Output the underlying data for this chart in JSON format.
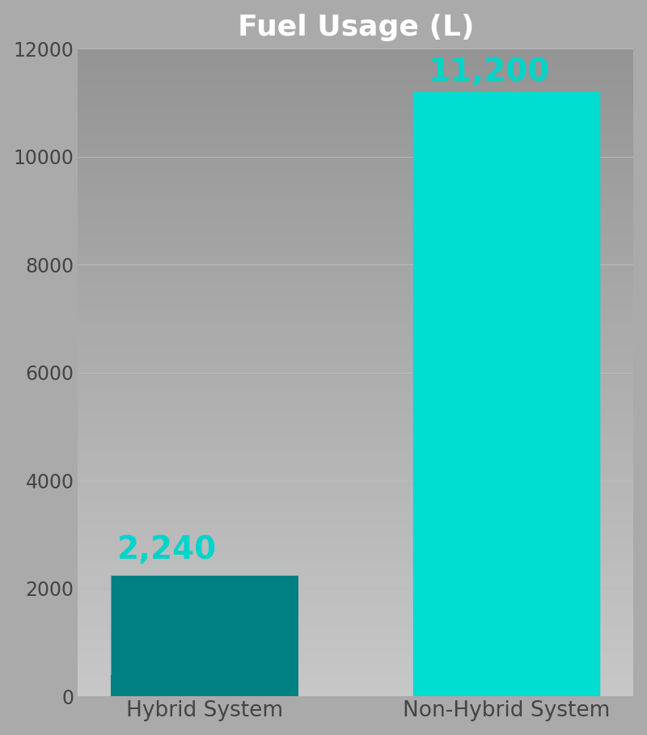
{
  "title": "Fuel Usage (L)",
  "categories": [
    "Hybrid System",
    "Non-Hybrid System"
  ],
  "values": [
    2240,
    11200
  ],
  "label_texts": [
    "2,240",
    "11,200"
  ],
  "label_color": "#00D4C8",
  "ylim": [
    0,
    12000
  ],
  "yticks": [
    0,
    2000,
    4000,
    6000,
    8000,
    10000,
    12000
  ],
  "title_color": "#ffffff",
  "title_fontsize": 26,
  "tick_label_fontsize": 17,
  "xticklabel_fontsize": 19,
  "value_label_fontsize": 28,
  "bar_width": 0.62,
  "grid_color": "#bbbbbb",
  "hybrid_bar_color": "#008080",
  "nonhybrid_bar_color": "#00DED1",
  "bg_color_top": "#999999",
  "bg_color_bottom": "#c8c8c8",
  "tick_color": "#444444",
  "bar_positions": [
    0,
    1
  ]
}
